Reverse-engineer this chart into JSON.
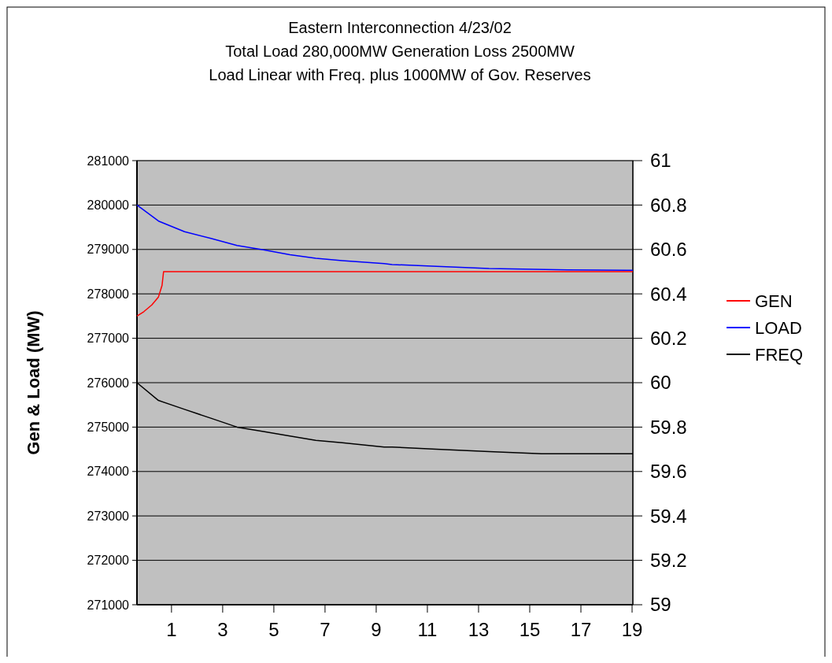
{
  "chart_data": {
    "type": "line",
    "title": "Eastern Interconnection 4/23/02\nTotal Load 280,000MW Generation Loss 2500MW\nLoad Linear with Freq. plus 1000MW of Gov. Reserves",
    "ylabel": "Gen & Load (MW)",
    "xlim": [
      -0.35,
      19.03
    ],
    "xticks": [
      1,
      3,
      5,
      7,
      9,
      11,
      13,
      15,
      17,
      19
    ],
    "ylim": [
      271000,
      281000
    ],
    "yticks": [
      271000,
      272000,
      273000,
      274000,
      275000,
      276000,
      277000,
      278000,
      279000,
      280000,
      281000
    ],
    "y2lim": [
      59,
      61
    ],
    "y2ticks": [
      59,
      59.2,
      59.4,
      59.6,
      59.8,
      60,
      60.2,
      60.4,
      60.6,
      60.8,
      61
    ],
    "grid": "y",
    "legend": "right",
    "series": [
      {
        "name": "GEN",
        "color": "#ff0000",
        "x": [
          -0.35,
          -0.08,
          0.23,
          0.49,
          0.63,
          0.69,
          19.03
        ],
        "values": [
          277500,
          277600,
          277750,
          277930,
          278190,
          278500,
          278500
        ]
      },
      {
        "name": "LOAD",
        "color": "#0000ff",
        "x": [
          -0.35,
          0.49,
          1.51,
          2.54,
          3.56,
          4.59,
          5.63,
          6.64,
          7.67,
          9.31,
          9.62,
          11.36,
          13.41,
          16.48,
          18.78,
          19.03
        ],
        "values": [
          280000,
          279640,
          279400,
          279250,
          279090,
          278990,
          278880,
          278800,
          278750,
          278680,
          278660,
          278620,
          278570,
          278540,
          278530,
          278530
        ]
      },
      {
        "name": "FREQ",
        "color": "#000000",
        "axis": "y2",
        "x": [
          -0.35,
          0.49,
          1.51,
          2.54,
          3.56,
          4.59,
          5.63,
          6.64,
          7.67,
          9.31,
          9.62,
          11.36,
          13.41,
          15.46,
          18.54,
          19.03
        ],
        "values": [
          60,
          59.92,
          59.88,
          59.84,
          59.8,
          59.78,
          59.76,
          59.74,
          59.73,
          59.71,
          59.71,
          59.7,
          59.69,
          59.68,
          59.68,
          59.68
        ]
      }
    ]
  }
}
